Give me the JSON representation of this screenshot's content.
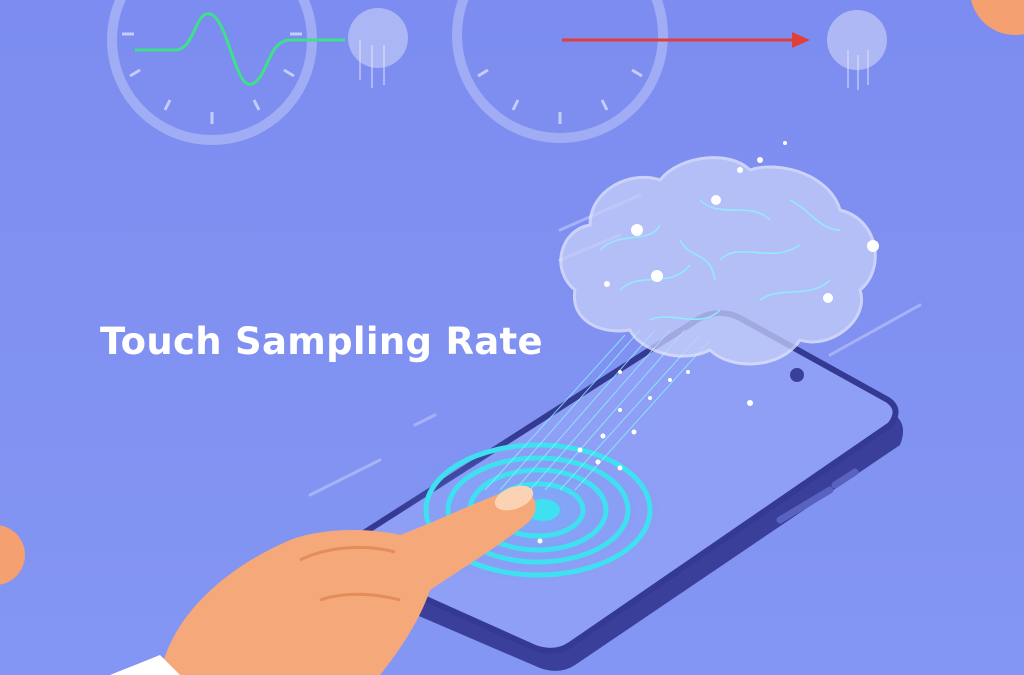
{
  "title": "Touch Sampling Rate",
  "colors": {
    "background": "#7d8ff0",
    "phone_body": "#3a3f9a",
    "phone_screen": "#8e9ff5",
    "touch_rings": "#3fe0f0",
    "waveform": "#3ee08a",
    "arrow": "#e0403a",
    "finger": "#f5a97a",
    "accent_orange": "#f5a070"
  },
  "icons": [
    "gauge-dial-left",
    "gauge-dial-right",
    "waveform",
    "arrow-right",
    "brain",
    "smartphone",
    "finger",
    "touch-ripple"
  ]
}
